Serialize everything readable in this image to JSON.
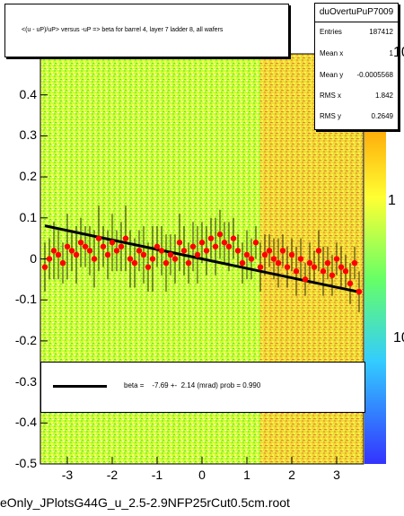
{
  "title": "<(u - uP)/uP> versus -uP => beta for barrel 4, layer 7 ladder 8, all wafers",
  "stats": {
    "name": "duOvertuPuP7009",
    "rows": [
      {
        "label": "Entries",
        "value": "187412"
      },
      {
        "label": "Mean x",
        "value": "1"
      },
      {
        "label": "Mean y",
        "value": "-0.0005568"
      },
      {
        "label": "RMS x",
        "value": "1.842"
      },
      {
        "label": "RMS y",
        "value": "0.2649"
      }
    ]
  },
  "legend": {
    "text": "beta =    -7.69 +-  2.14 (mrad) prob = 0.990"
  },
  "filename": "eOnly_JPlotsG44G_u_2.5-2.9NFP25rCut0.5cm.root",
  "colors": {
    "profile_points": "#ff0000",
    "fit_line": "#000000",
    "heatmap_low": "#ccff33",
    "heatmap_high": "#ff9900"
  },
  "chart_data": {
    "type": "heatmap",
    "xlim": [
      -3.6,
      3.6
    ],
    "ylim": [
      -0.5,
      0.5
    ],
    "x_ticks": [
      "-3",
      "-2",
      "-1",
      "0",
      "1",
      "2",
      "3"
    ],
    "y_ticks": [
      "-0.5",
      "-0.4",
      "-0.3",
      "-0.2",
      "-0.1",
      "0",
      "0.1",
      "0.2",
      "0.3",
      "0.4"
    ],
    "z_ticks": [
      "10",
      "1",
      "10"
    ],
    "fit": {
      "label": "beta",
      "slope": -0.00769,
      "intercept": 0.0
    },
    "profile": {
      "x": [
        -3.5,
        -3.4,
        -3.3,
        -3.2,
        -3.1,
        -3.0,
        -2.9,
        -2.8,
        -2.7,
        -2.6,
        -2.5,
        -2.4,
        -2.3,
        -2.2,
        -2.1,
        -2.0,
        -1.9,
        -1.8,
        -1.7,
        -1.6,
        -1.5,
        -1.4,
        -1.3,
        -1.2,
        -1.1,
        -1.0,
        -0.9,
        -0.8,
        -0.7,
        -0.6,
        -0.5,
        -0.4,
        -0.3,
        -0.2,
        -0.1,
        0.0,
        0.1,
        0.2,
        0.3,
        0.4,
        0.5,
        0.6,
        0.7,
        0.8,
        0.9,
        1.0,
        1.1,
        1.2,
        1.3,
        1.4,
        1.5,
        1.6,
        1.7,
        1.8,
        1.9,
        2.0,
        2.1,
        2.2,
        2.3,
        2.4,
        2.5,
        2.6,
        2.7,
        2.8,
        2.9,
        3.0,
        3.1,
        3.2,
        3.3,
        3.4,
        3.5
      ],
      "y": [
        -0.02,
        0.0,
        0.02,
        0.01,
        -0.01,
        0.03,
        0.02,
        0.01,
        0.04,
        0.03,
        0.02,
        0.0,
        0.05,
        0.03,
        0.01,
        0.04,
        0.02,
        0.03,
        0.05,
        0.0,
        -0.01,
        0.02,
        0.01,
        -0.02,
        0.0,
        0.03,
        0.02,
        -0.01,
        0.01,
        0.0,
        0.04,
        0.02,
        -0.01,
        0.03,
        0.01,
        0.04,
        0.02,
        0.05,
        0.03,
        0.06,
        0.04,
        0.03,
        0.05,
        0.02,
        -0.01,
        0.01,
        0.0,
        0.04,
        -0.02,
        0.01,
        0.02,
        0.0,
        -0.01,
        0.02,
        -0.02,
        0.01,
        -0.03,
        0.0,
        -0.05,
        -0.01,
        -0.02,
        0.02,
        -0.03,
        -0.01,
        -0.04,
        0.0,
        -0.02,
        -0.03,
        -0.06,
        -0.01,
        -0.08
      ],
      "err": [
        0.06,
        0.05,
        0.07,
        0.06,
        0.05,
        0.08,
        0.05,
        0.07,
        0.06,
        0.05,
        0.06,
        0.07,
        0.08,
        0.05,
        0.06,
        0.07,
        0.05,
        0.06,
        0.08,
        0.07,
        0.06,
        0.05,
        0.07,
        0.06,
        0.08,
        0.05,
        0.06,
        0.07,
        0.05,
        0.06,
        0.07,
        0.06,
        0.05,
        0.06,
        0.07,
        0.05,
        0.06,
        0.05,
        0.07,
        0.06,
        0.05,
        0.06,
        0.05,
        0.04,
        0.05,
        0.06,
        0.05,
        0.04,
        0.06,
        0.05,
        0.04,
        0.05,
        0.06,
        0.04,
        0.05,
        0.04,
        0.06,
        0.05,
        0.04,
        0.05,
        0.04,
        0.05,
        0.06,
        0.04,
        0.05,
        0.04,
        0.05,
        0.04,
        0.05,
        0.04,
        0.05
      ]
    }
  }
}
